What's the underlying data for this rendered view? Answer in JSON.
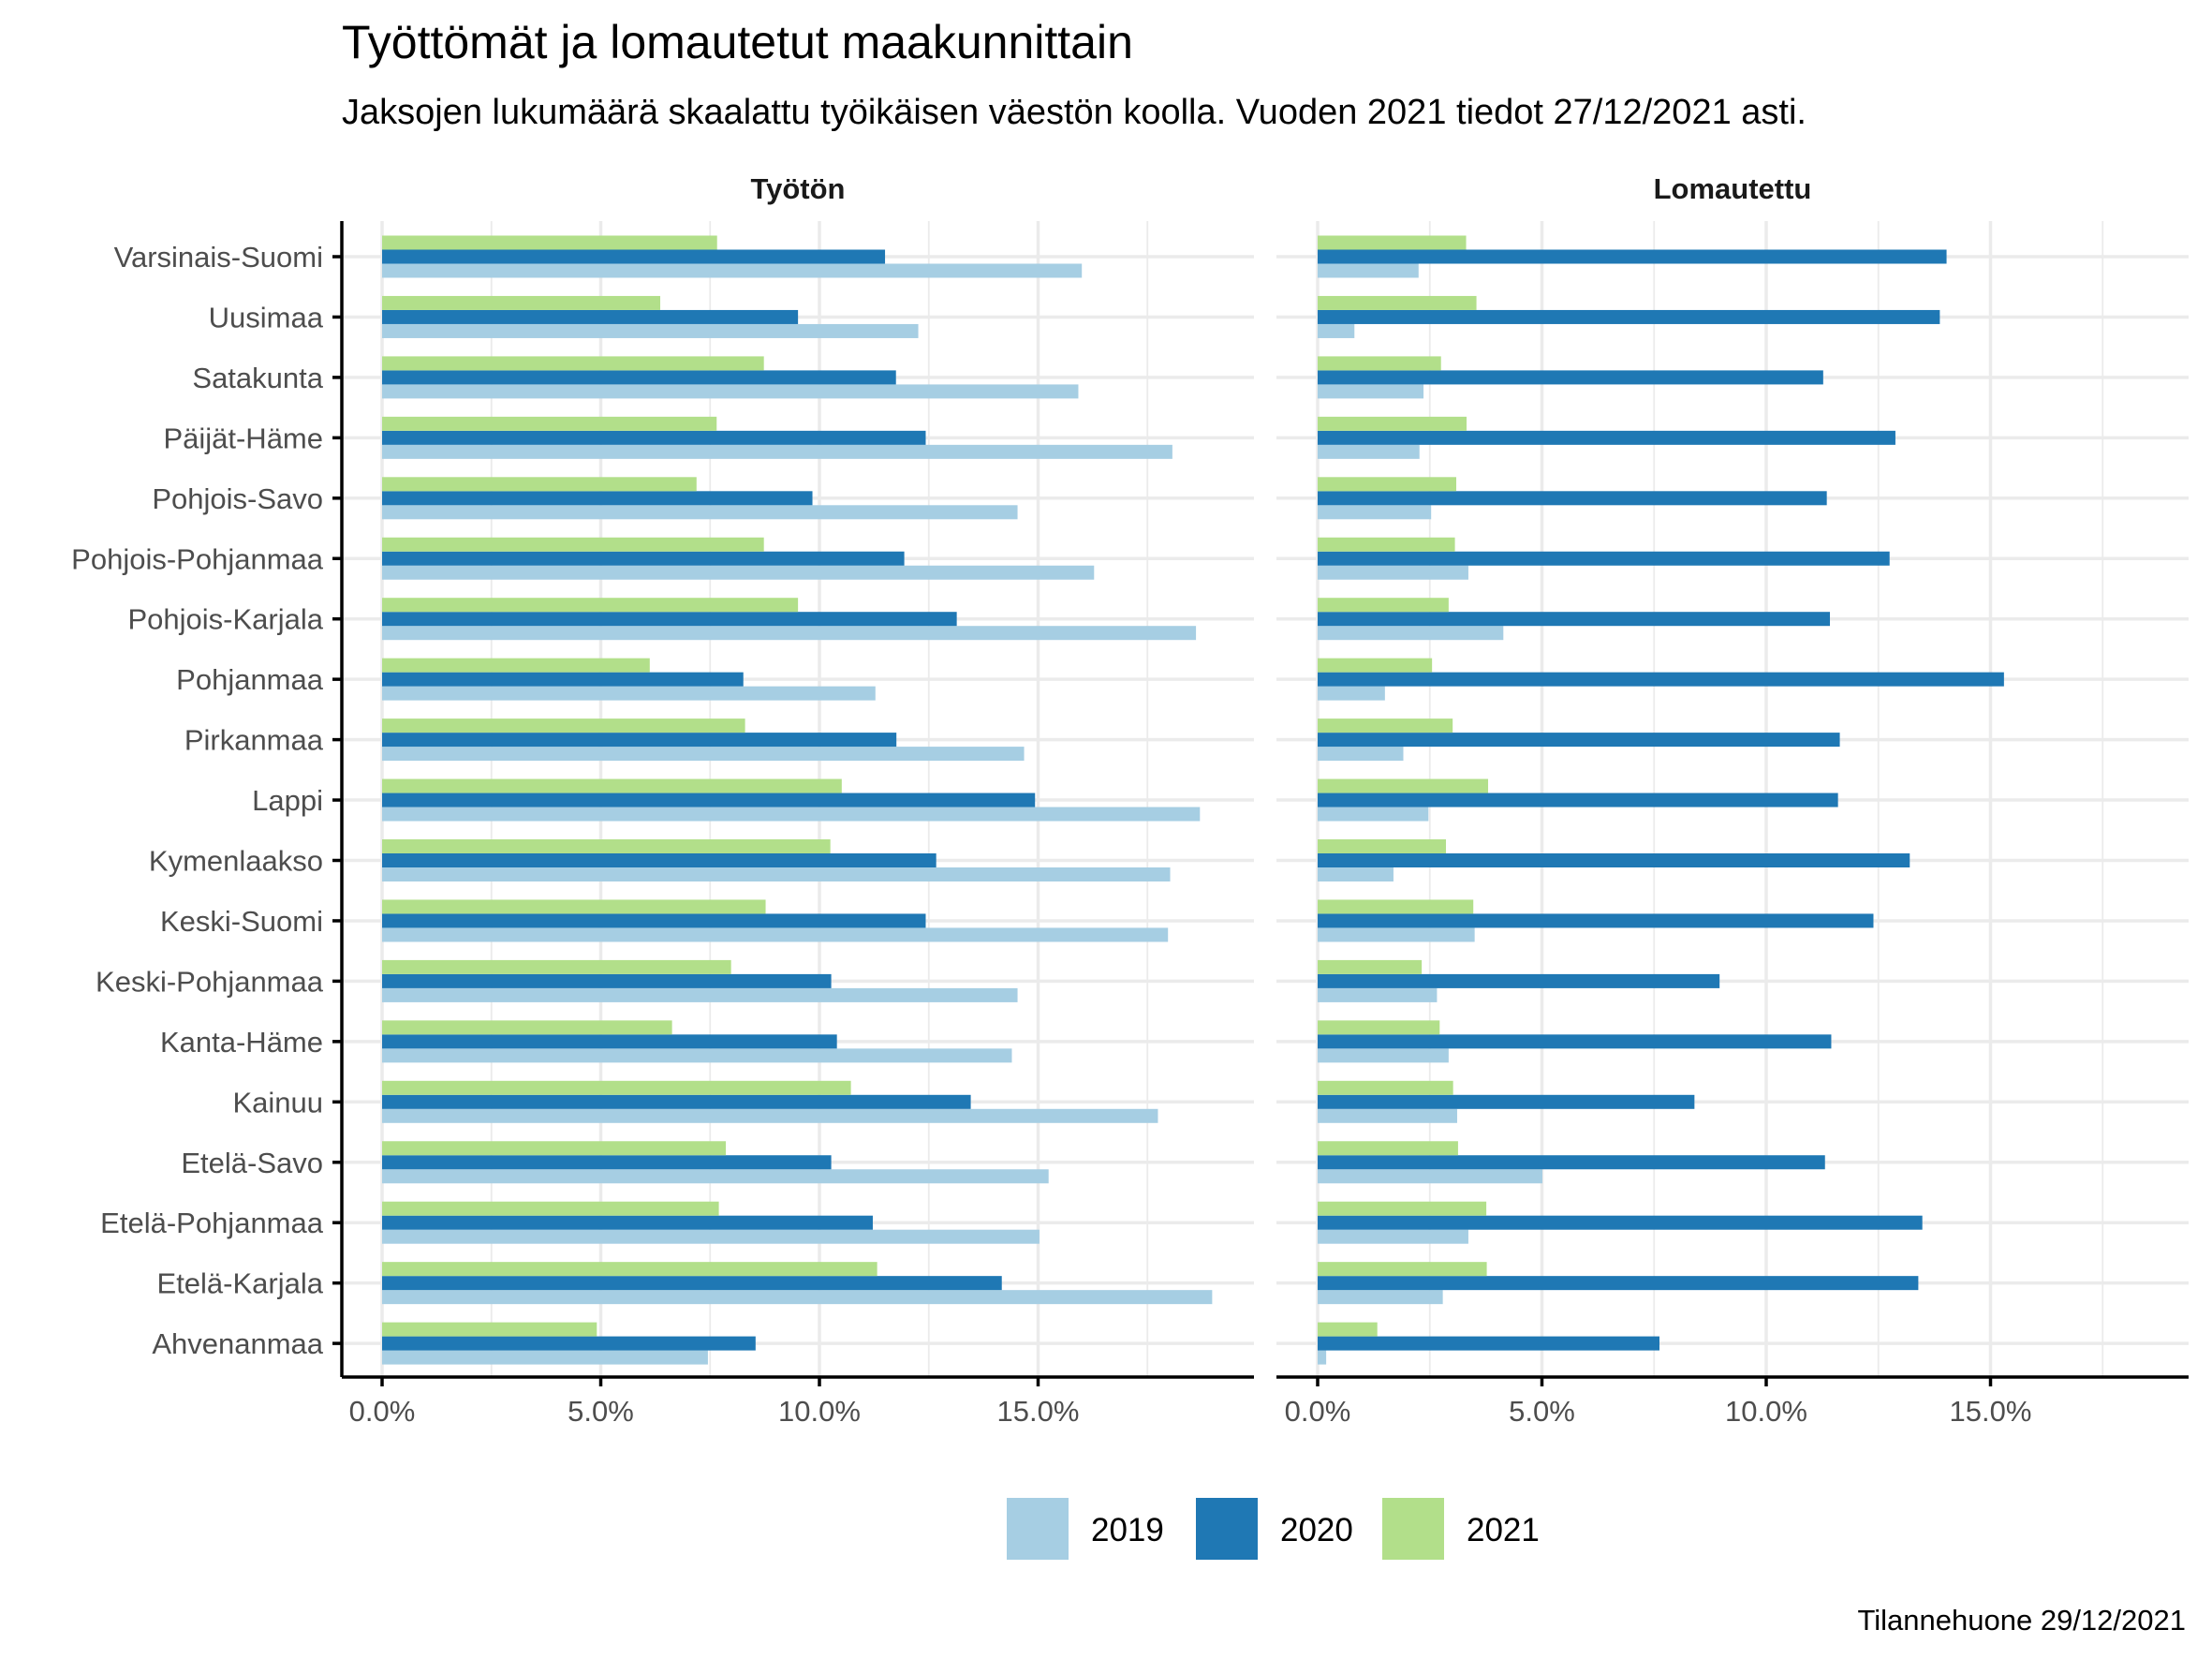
{
  "chart_data": {
    "type": "bar",
    "orientation": "horizontal",
    "title": "Työttömät ja lomautetut maakunnittain",
    "subtitle": "Jaksojen lukumäärä skaalattu työikäisen väestön koolla. Vuoden 2021 tiedot 27/12/2021 asti.",
    "caption": "Tilannehuone 29/12/2021",
    "xlabel": "",
    "ylabel": "",
    "xlim": [
      0,
      19.5
    ],
    "x_ticks": [
      0,
      5,
      10,
      15
    ],
    "x_tick_labels": [
      "0.0%",
      "5.0%",
      "10.0%",
      "15.0%"
    ],
    "grid": true,
    "legend_position": "bottom",
    "legend": [
      {
        "name": "2019",
        "color": "#A6CEE3"
      },
      {
        "name": "2020",
        "color": "#1F78B4"
      },
      {
        "name": "2021",
        "color": "#B2DF8A"
      }
    ],
    "categories": [
      "Varsinais-Suomi",
      "Uusimaa",
      "Satakunta",
      "Päijät-Häme",
      "Pohjois-Savo",
      "Pohjois-Pohjanmaa",
      "Pohjois-Karjala",
      "Pohjanmaa",
      "Pirkanmaa",
      "Lappi",
      "Kymenlaakso",
      "Keski-Suomi",
      "Keski-Pohjanmaa",
      "Kanta-Häme",
      "Kainuu",
      "Etelä-Savo",
      "Etelä-Pohjanmaa",
      "Etelä-Karjala",
      "Ahvenanmaa"
    ],
    "panels": [
      {
        "name": "Työtön",
        "series": [
          {
            "name": "2019",
            "values": [
              16.0,
              12.26,
              15.92,
              18.07,
              14.53,
              16.28,
              18.61,
              11.28,
              14.68,
              18.7,
              18.02,
              17.97,
              14.53,
              14.4,
              17.74,
              15.24,
              15.03,
              18.98,
              7.45
            ]
          },
          {
            "name": "2020",
            "values": [
              11.5,
              9.51,
              11.75,
              12.43,
              9.84,
              11.94,
              13.14,
              8.26,
              11.76,
              14.93,
              12.67,
              12.43,
              10.27,
              10.4,
              13.46,
              10.27,
              11.22,
              14.17,
              8.54
            ]
          },
          {
            "name": "2021",
            "values": [
              7.66,
              6.36,
              8.73,
              7.65,
              7.19,
              8.73,
              9.51,
              6.12,
              8.3,
              10.51,
              10.25,
              8.77,
              7.98,
              6.63,
              10.72,
              7.86,
              7.7,
              11.32,
              4.91
            ]
          }
        ]
      },
      {
        "name": "Lomautettu",
        "series": [
          {
            "name": "2019",
            "values": [
              2.25,
              0.82,
              2.36,
              2.27,
              2.53,
              3.36,
              4.14,
              1.5,
              1.91,
              2.47,
              1.69,
              3.5,
              2.66,
              2.92,
              3.11,
              5.01,
              3.36,
              2.79,
              0.19
            ]
          },
          {
            "name": "2020",
            "values": [
              14.02,
              13.87,
              11.27,
              12.88,
              11.35,
              12.75,
              11.42,
              15.3,
              11.64,
              11.6,
              13.2,
              12.39,
              8.96,
              11.45,
              8.4,
              11.31,
              13.48,
              13.39,
              7.62
            ]
          },
          {
            "name": "2021",
            "values": [
              3.31,
              3.54,
              2.75,
              3.32,
              3.09,
              3.06,
              2.92,
              2.55,
              3.01,
              3.8,
              2.86,
              3.47,
              2.32,
              2.72,
              3.02,
              3.13,
              3.76,
              3.77,
              1.33
            ]
          }
        ]
      }
    ]
  }
}
